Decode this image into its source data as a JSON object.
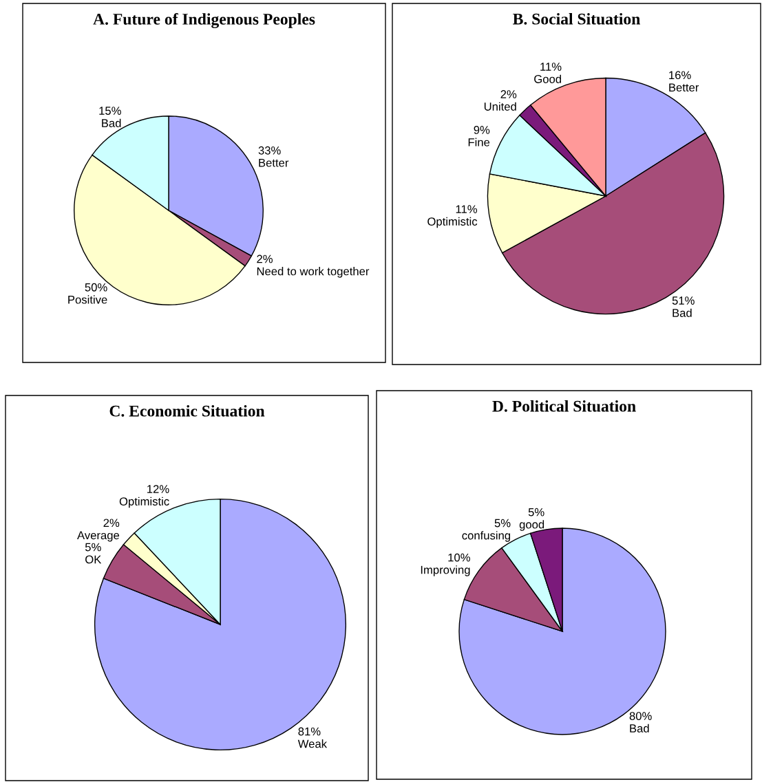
{
  "chart_data": [
    {
      "type": "pie",
      "title": "A. Future of Indigenous Peoples",
      "categories": [
        "Better",
        "Need to work together",
        "Positive",
        "Bad"
      ],
      "values": [
        33,
        2,
        50,
        15
      ],
      "value_labels": [
        "33%",
        "2%",
        "50%",
        "15%"
      ],
      "colors": [
        "#aaaaff",
        "#a64d79",
        "#ffffcc",
        "#ccffff"
      ]
    },
    {
      "type": "pie",
      "title": "B. Social Situation",
      "categories": [
        "Better",
        "Bad",
        "Optimistic",
        "Fine",
        "United",
        "Good"
      ],
      "values": [
        16,
        51,
        11,
        9,
        2,
        11
      ],
      "value_labels": [
        "16%",
        "51%",
        "11%",
        "9%",
        "2%",
        "11%"
      ],
      "colors": [
        "#aaaaff",
        "#a64d79",
        "#ffffcc",
        "#ccffff",
        "#7b1a7b",
        "#ff9999"
      ]
    },
    {
      "type": "pie",
      "title": "C. Economic Situation",
      "categories": [
        "Weak",
        "OK",
        "Average",
        "Optimistic"
      ],
      "values": [
        81,
        5,
        2,
        12
      ],
      "value_labels": [
        "81%",
        "5%",
        "2%",
        "12%"
      ],
      "colors": [
        "#aaaaff",
        "#a64d79",
        "#ffffcc",
        "#ccffff"
      ]
    },
    {
      "type": "pie",
      "title": "D. Political Situation",
      "categories": [
        "Bad",
        "Improving",
        "confusing",
        "good"
      ],
      "values": [
        80,
        10,
        5,
        5
      ],
      "value_labels": [
        "80%",
        "10%",
        "5%",
        "5%"
      ],
      "colors": [
        "#aaaaff",
        "#a64d79",
        "#ccffff",
        "#7b1a7b"
      ]
    }
  ]
}
